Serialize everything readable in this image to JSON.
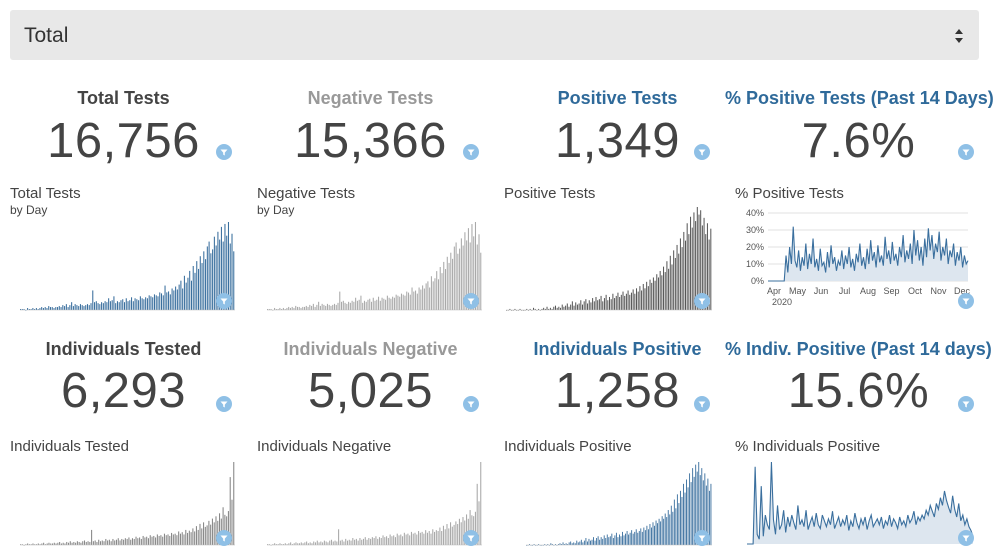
{
  "selector": {
    "value": "Total"
  },
  "colors": {
    "blue": "#3a6f9e",
    "gray": "#a9a9a9",
    "dark": "#555555",
    "title_dark": "#444444",
    "title_gray": "#999999",
    "title_blue": "#2f6a9a",
    "filter_icon": "#8fc0e6"
  },
  "tests_row": [
    {
      "title": "Total Tests",
      "value": "16,756",
      "chart_title": "Total Tests",
      "chart_sub": "by Day"
    },
    {
      "title": "Negative Tests",
      "value": "15,366",
      "chart_title": "Negative Tests",
      "chart_sub": "by Day"
    },
    {
      "title": "Positive Tests",
      "value": "1,349",
      "chart_title": "Positive Tests",
      "chart_sub": ""
    },
    {
      "title": "% Positive Tests (Past 14 Days)",
      "value": "7.6%",
      "chart_title": "% Positive Tests",
      "chart_sub": ""
    }
  ],
  "individuals_row": [
    {
      "title": "Individuals Tested",
      "value": "6,293",
      "chart_title": "Individuals Tested"
    },
    {
      "title": "Individuals Negative",
      "value": "5,025",
      "chart_title": "Individuals Negative"
    },
    {
      "title": "Individuals Positive",
      "value": "1,258",
      "chart_title": "Individuals Positive"
    },
    {
      "title": "% Indiv. Positive (Past 14 days)",
      "value": "15.6%",
      "chart_title": "% Individuals Positive"
    }
  ],
  "pct_chart_axis": {
    "y_ticks": [
      "40%",
      "30%",
      "20%",
      "10%",
      "0%"
    ],
    "x_ticks": [
      "Apr",
      "May",
      "Jun",
      "Jul",
      "Aug",
      "Sep",
      "Oct",
      "Nov",
      "Dec"
    ],
    "x_year": "2020"
  },
  "chart_data": [
    {
      "type": "bar",
      "title": "Total Tests",
      "series_color": "#3a6f9e",
      "values": [
        1,
        1,
        1,
        0,
        2,
        1,
        1,
        2,
        1,
        2,
        1,
        2,
        3,
        2,
        3,
        2,
        4,
        3,
        3,
        2,
        3,
        3,
        4,
        3,
        5,
        4,
        6,
        3,
        5,
        8,
        4,
        6,
        5,
        4,
        6,
        5,
        4,
        5,
        6,
        5,
        7,
        20,
        8,
        9,
        7,
        6,
        8,
        7,
        9,
        8,
        12,
        9,
        10,
        14,
        7,
        9,
        8,
        10,
        11,
        8,
        12,
        9,
        10,
        13,
        9,
        12,
        11,
        10,
        14,
        12,
        11,
        13,
        12,
        15,
        14,
        13,
        16,
        15,
        14,
        18,
        17,
        15,
        25,
        18,
        19,
        16,
        22,
        20,
        24,
        21,
        26,
        30,
        22,
        35,
        28,
        33,
        40,
        30,
        45,
        38,
        50,
        42,
        55,
        48,
        60,
        52,
        65,
        70,
        58,
        62,
        75,
        66,
        80,
        72,
        85,
        70,
        88,
        76,
        90,
        68,
        78,
        60
      ]
    },
    {
      "type": "bar",
      "title": "Negative Tests",
      "series_color": "#a9a9a9",
      "values": [
        1,
        1,
        1,
        0,
        2,
        1,
        1,
        2,
        1,
        2,
        1,
        2,
        3,
        2,
        3,
        2,
        4,
        3,
        3,
        2,
        3,
        3,
        4,
        3,
        5,
        4,
        6,
        3,
        5,
        8,
        4,
        6,
        5,
        4,
        6,
        5,
        4,
        5,
        6,
        5,
        7,
        18,
        8,
        9,
        7,
        6,
        8,
        7,
        9,
        8,
        12,
        9,
        10,
        14,
        7,
        9,
        8,
        10,
        11,
        8,
        12,
        9,
        10,
        13,
        9,
        12,
        11,
        10,
        14,
        12,
        11,
        13,
        12,
        15,
        14,
        13,
        16,
        15,
        14,
        18,
        17,
        15,
        22,
        18,
        19,
        16,
        22,
        20,
        24,
        21,
        26,
        28,
        22,
        33,
        28,
        31,
        38,
        30,
        42,
        36,
        47,
        40,
        52,
        46,
        56,
        50,
        62,
        66,
        55,
        60,
        70,
        63,
        76,
        68,
        80,
        66,
        84,
        72,
        86,
        64,
        74,
        56
      ]
    },
    {
      "type": "bar",
      "title": "Positive Tests",
      "series_color": "#555555",
      "values": [
        0,
        0,
        1,
        0,
        0,
        1,
        0,
        0,
        1,
        0,
        0,
        0,
        1,
        0,
        1,
        0,
        2,
        1,
        0,
        1,
        0,
        1,
        2,
        1,
        3,
        1,
        2,
        1,
        3,
        4,
        2,
        3,
        2,
        5,
        3,
        4,
        6,
        3,
        5,
        8,
        4,
        7,
        5,
        6,
        9,
        5,
        8,
        10,
        6,
        9,
        7,
        11,
        8,
        12,
        9,
        10,
        13,
        8,
        11,
        14,
        9,
        12,
        10,
        15,
        11,
        13,
        16,
        12,
        14,
        17,
        13,
        15,
        18,
        14,
        16,
        19,
        15,
        20,
        17,
        22,
        18,
        24,
        20,
        26,
        22,
        28,
        25,
        30,
        27,
        33,
        30,
        36,
        32,
        40,
        35,
        45,
        38,
        50,
        42,
        55,
        48,
        60,
        52,
        66,
        58,
        72,
        64,
        80,
        70,
        86,
        76,
        90,
        82,
        95,
        88,
        92,
        78,
        85,
        70,
        80,
        65,
        75
      ]
    },
    {
      "type": "line",
      "title": "% Positive Tests",
      "x_ticks": [
        "Apr",
        "May",
        "Jun",
        "Jul",
        "Aug",
        "Sep",
        "Oct",
        "Nov",
        "Dec"
      ],
      "ylim": [
        0,
        40
      ],
      "y_ticks": [
        "0%",
        "10%",
        "20%",
        "30%",
        "40%"
      ],
      "series_color": "#3a6f9e",
      "values": [
        0,
        0,
        0,
        0,
        0,
        0,
        0,
        0,
        0,
        0,
        15,
        5,
        20,
        10,
        32,
        12,
        8,
        18,
        6,
        14,
        9,
        22,
        7,
        16,
        10,
        25,
        8,
        13,
        6,
        19,
        9,
        11,
        5,
        17,
        8,
        21,
        10,
        14,
        6,
        12,
        9,
        18,
        7,
        15,
        10,
        20,
        8,
        13,
        6,
        16,
        11,
        22,
        9,
        14,
        7,
        19,
        10,
        24,
        12,
        17,
        8,
        21,
        11,
        15,
        9,
        26,
        13,
        18,
        10,
        23,
        12,
        16,
        9,
        20,
        14,
        27,
        11,
        18,
        13,
        22,
        10,
        30,
        15,
        24,
        12,
        20,
        9,
        25,
        14,
        31,
        18,
        27,
        13,
        22,
        17,
        29,
        12,
        20,
        15,
        25,
        10,
        18,
        14,
        22,
        9,
        17,
        12,
        20,
        8,
        15,
        10,
        12
      ]
    },
    {
      "type": "bar",
      "title": "Individuals Tested",
      "series_color": "#888888",
      "values": [
        1,
        1,
        0,
        1,
        2,
        1,
        1,
        2,
        1,
        1,
        2,
        1,
        2,
        3,
        1,
        2,
        3,
        2,
        2,
        3,
        2,
        3,
        4,
        2,
        3,
        2,
        4,
        3,
        5,
        3,
        4,
        3,
        5,
        4,
        3,
        5,
        6,
        4,
        5,
        4,
        20,
        5,
        6,
        4,
        7,
        5,
        6,
        5,
        8,
        6,
        7,
        5,
        8,
        6,
        7,
        9,
        6,
        8,
        7,
        9,
        8,
        10,
        7,
        9,
        8,
        11,
        9,
        10,
        8,
        12,
        10,
        11,
        9,
        13,
        11,
        12,
        10,
        14,
        12,
        13,
        11,
        15,
        13,
        14,
        12,
        16,
        14,
        15,
        13,
        18,
        15,
        17,
        14,
        20,
        16,
        19,
        17,
        22,
        18,
        25,
        20,
        28,
        22,
        30,
        24,
        26,
        32,
        27,
        35,
        30,
        38,
        32,
        42,
        35,
        50,
        40,
        38,
        45,
        90,
        60,
        110
      ]
    },
    {
      "type": "bar",
      "title": "Individuals Negative",
      "series_color": "#a9a9a9",
      "values": [
        1,
        1,
        0,
        1,
        2,
        1,
        1,
        2,
        1,
        1,
        2,
        1,
        2,
        3,
        1,
        2,
        3,
        2,
        2,
        3,
        2,
        3,
        4,
        2,
        3,
        2,
        4,
        3,
        5,
        3,
        4,
        3,
        5,
        4,
        3,
        5,
        6,
        4,
        5,
        4,
        18,
        5,
        6,
        4,
        7,
        5,
        6,
        5,
        8,
        6,
        7,
        5,
        8,
        6,
        7,
        9,
        6,
        8,
        7,
        9,
        8,
        10,
        7,
        9,
        8,
        11,
        9,
        10,
        8,
        12,
        10,
        11,
        9,
        13,
        11,
        12,
        10,
        14,
        12,
        13,
        11,
        15,
        13,
        14,
        12,
        16,
        14,
        15,
        13,
        17,
        14,
        16,
        13,
        18,
        15,
        17,
        16,
        20,
        16,
        22,
        18,
        24,
        19,
        26,
        21,
        23,
        27,
        24,
        30,
        26,
        32,
        28,
        35,
        30,
        40,
        34,
        33,
        38,
        70,
        50,
        95
      ]
    },
    {
      "type": "bar",
      "title": "Individuals Positive",
      "series_color": "#3a6f9e",
      "values": [
        0,
        0,
        1,
        0,
        0,
        1,
        0,
        0,
        1,
        0,
        0,
        0,
        1,
        0,
        1,
        0,
        2,
        1,
        0,
        1,
        0,
        1,
        2,
        1,
        3,
        1,
        2,
        1,
        3,
        4,
        2,
        3,
        2,
        5,
        3,
        4,
        6,
        3,
        5,
        8,
        4,
        7,
        5,
        6,
        9,
        5,
        8,
        10,
        6,
        9,
        7,
        11,
        8,
        12,
        9,
        10,
        13,
        8,
        11,
        14,
        9,
        12,
        10,
        15,
        11,
        13,
        16,
        12,
        14,
        17,
        13,
        15,
        18,
        14,
        16,
        19,
        15,
        20,
        17,
        22,
        18,
        24,
        20,
        26,
        22,
        28,
        25,
        30,
        27,
        33,
        30,
        36,
        32,
        40,
        35,
        45,
        38,
        52,
        42,
        58,
        48,
        62,
        55,
        70,
        60,
        75,
        66,
        82,
        72,
        88,
        78,
        92,
        84,
        95,
        80,
        88,
        74,
        82,
        68,
        76,
        62,
        70
      ]
    },
    {
      "type": "line",
      "title": "% Individuals Positive",
      "series_color": "#3a6f9e",
      "values": [
        0,
        0,
        0,
        0,
        80,
        10,
        5,
        60,
        8,
        30,
        20,
        15,
        85,
        25,
        10,
        40,
        15,
        20,
        35,
        12,
        28,
        18,
        30,
        22,
        15,
        40,
        20,
        25,
        18,
        35,
        15,
        22,
        28,
        18,
        32,
        20,
        16,
        30,
        24,
        18,
        26,
        20,
        34,
        16,
        22,
        28,
        18,
        25,
        20,
        30,
        14,
        24,
        18,
        32,
        22,
        16,
        26,
        20,
        28,
        15,
        24,
        30,
        18,
        22,
        26,
        20,
        28,
        16,
        24,
        20,
        30,
        18,
        26,
        22,
        16,
        28,
        20,
        24,
        18,
        30,
        22,
        26,
        34,
        20,
        28,
        24,
        30,
        26,
        35,
        30,
        40,
        34,
        28,
        42,
        36,
        48,
        40,
        55,
        45,
        38,
        32,
        50,
        36,
        28,
        42,
        24,
        30,
        20,
        26,
        18,
        14,
        8
      ]
    }
  ]
}
